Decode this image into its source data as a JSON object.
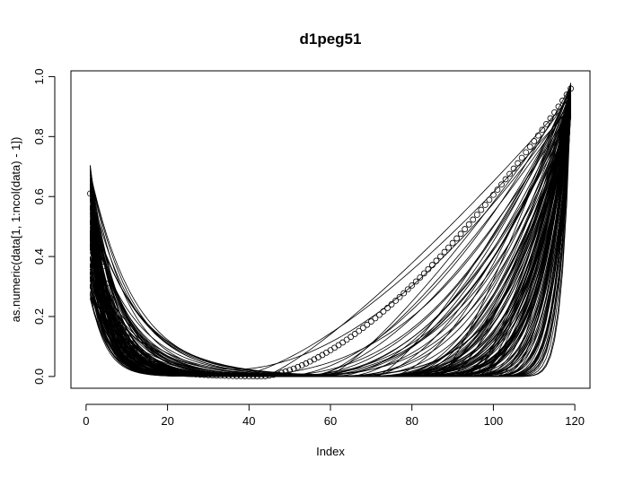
{
  "chart_data": {
    "type": "line",
    "title": "d1peg51",
    "xlabel": "Index",
    "ylabel": "as.numeric(data[1, 1:ncol(data) - 1])",
    "xlim": [
      1,
      119
    ],
    "ylim": [
      0,
      0.98
    ],
    "x_ticks": [
      0,
      20,
      40,
      60,
      80,
      100,
      120
    ],
    "y_ticks": [
      0.0,
      0.2,
      0.4,
      0.6,
      0.8,
      1.0
    ],
    "x_tick_labels": [
      "0",
      "20",
      "40",
      "60",
      "80",
      "100",
      "120"
    ],
    "y_tick_labels": [
      "0.0",
      "0.2",
      "0.4",
      "0.6",
      "0.8",
      "1.0"
    ],
    "grid": false,
    "legend": "none",
    "n_index": 119,
    "points_series": {
      "start_value": 0.61,
      "min_index": 43,
      "end_value": 0.96
    },
    "series_family": {
      "count": 140,
      "start_value_range": [
        0.26,
        0.71
      ],
      "left_decay_range": [
        0.08,
        0.28
      ],
      "min_index_range": [
        20,
        100
      ],
      "end_value_range": [
        0.86,
        0.98
      ],
      "right_steepness_range": [
        1.2,
        9.0
      ]
    }
  }
}
